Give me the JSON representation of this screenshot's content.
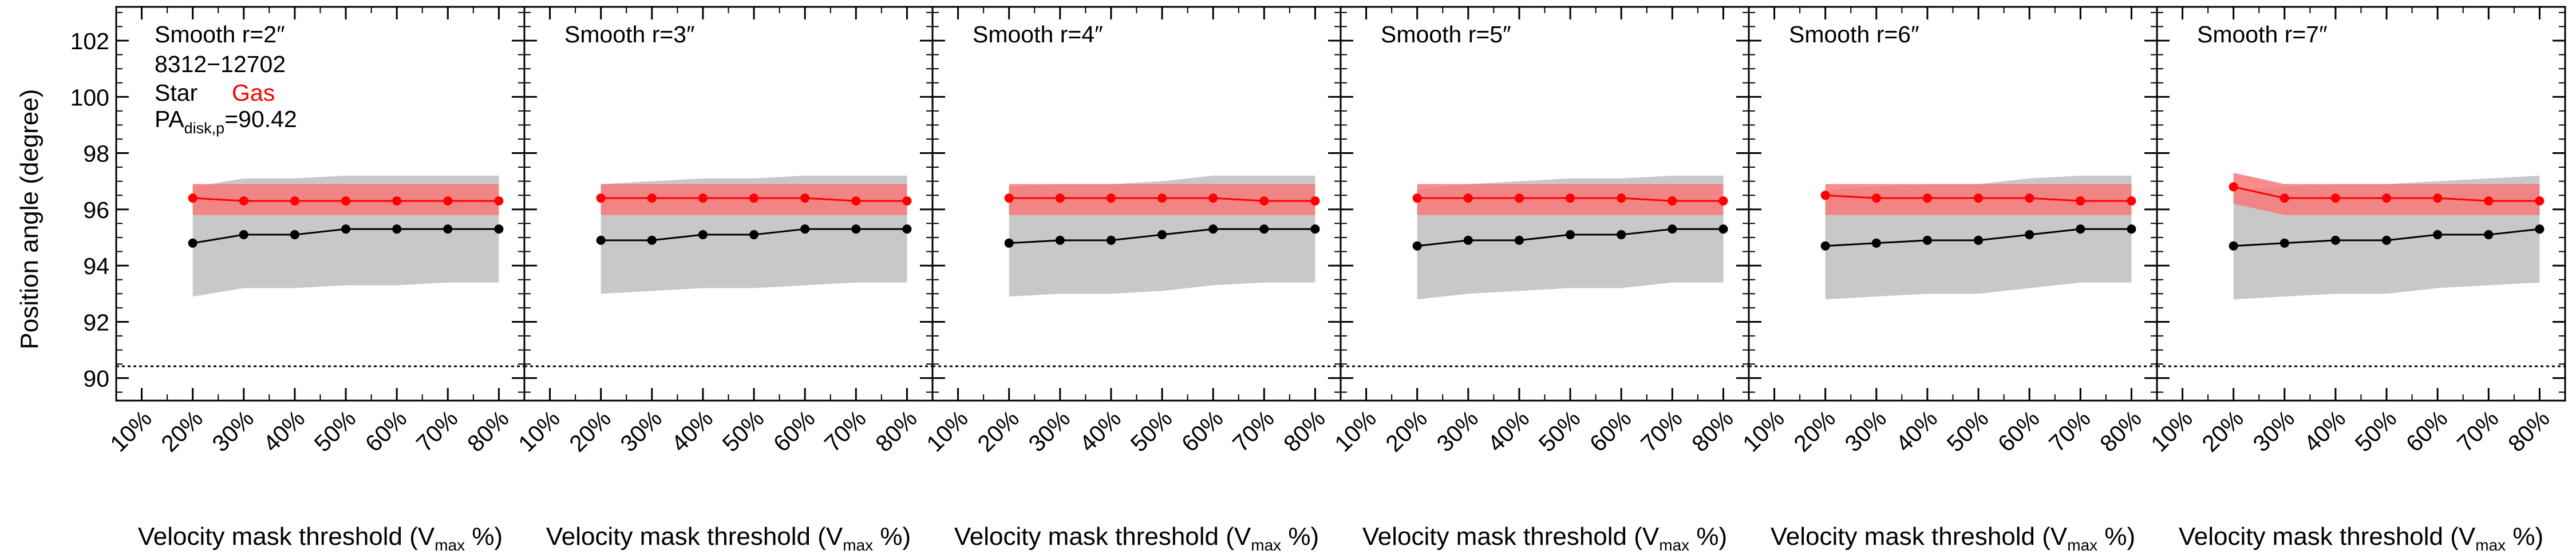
{
  "figure": {
    "ylabel": "Position angle (degree)",
    "galaxy_id": "8312−12702",
    "legend_star": "Star",
    "legend_gas": "Gas",
    "pa_label_main": "PA",
    "pa_label_sub": "disk,p",
    "pa_label_value": "=90.42",
    "xlabel_pre": "Velocity mask threshold (V",
    "xlabel_sub": "max",
    "xlabel_post": " %)",
    "colors": {
      "star": "#000000",
      "gas": "#ff0000",
      "gas_band": "#f87878",
      "star_band": "#c8c8c8",
      "gas_label": "#ff0000"
    }
  },
  "chart_data": [
    {
      "type": "line",
      "title": "Smooth r=2″",
      "x_ticks": [
        "10%",
        "20%",
        "30%",
        "40%",
        "50%",
        "60%",
        "70%",
        "80%"
      ],
      "x": [
        20,
        30,
        40,
        50,
        60,
        70,
        80
      ],
      "xlim": [
        5,
        85
      ],
      "ylim": [
        89.2,
        103.2
      ],
      "y_ticks": [
        90,
        92,
        94,
        96,
        98,
        100,
        102
      ],
      "reference_line": 90.42,
      "series": [
        {
          "name": "Star",
          "values": [
            94.8,
            95.1,
            95.1,
            95.3,
            95.3,
            95.3,
            95.3
          ],
          "band_low": [
            92.9,
            93.2,
            93.2,
            93.3,
            93.3,
            93.4,
            93.4
          ],
          "band_high": [
            96.8,
            97.1,
            97.1,
            97.2,
            97.2,
            97.2,
            97.2
          ]
        },
        {
          "name": "Gas",
          "values": [
            96.4,
            96.3,
            96.3,
            96.3,
            96.3,
            96.3,
            96.3
          ],
          "band_low": [
            95.8,
            95.8,
            95.8,
            95.8,
            95.8,
            95.8,
            95.8
          ],
          "band_high": [
            96.9,
            96.9,
            96.9,
            96.9,
            96.9,
            96.9,
            96.9
          ]
        }
      ]
    },
    {
      "type": "line",
      "title": "Smooth r=3″",
      "x_ticks": [
        "10%",
        "20%",
        "30%",
        "40%",
        "50%",
        "60%",
        "70%",
        "80%"
      ],
      "x": [
        20,
        30,
        40,
        50,
        60,
        70,
        80
      ],
      "xlim": [
        5,
        85
      ],
      "ylim": [
        89.2,
        103.2
      ],
      "y_ticks": [
        90,
        92,
        94,
        96,
        98,
        100,
        102
      ],
      "reference_line": 90.42,
      "series": [
        {
          "name": "Star",
          "values": [
            94.9,
            94.9,
            95.1,
            95.1,
            95.3,
            95.3,
            95.3
          ],
          "band_low": [
            93.0,
            93.1,
            93.2,
            93.2,
            93.3,
            93.4,
            93.4
          ],
          "band_high": [
            96.9,
            97.0,
            97.1,
            97.1,
            97.2,
            97.2,
            97.2
          ]
        },
        {
          "name": "Gas",
          "values": [
            96.4,
            96.4,
            96.4,
            96.4,
            96.4,
            96.3,
            96.3
          ],
          "band_low": [
            95.8,
            95.8,
            95.8,
            95.8,
            95.8,
            95.8,
            95.8
          ],
          "band_high": [
            96.9,
            96.9,
            96.9,
            96.9,
            96.9,
            96.9,
            96.9
          ]
        }
      ]
    },
    {
      "type": "line",
      "title": "Smooth r=4″",
      "x_ticks": [
        "10%",
        "20%",
        "30%",
        "40%",
        "50%",
        "60%",
        "70%",
        "80%"
      ],
      "x": [
        20,
        30,
        40,
        50,
        60,
        70,
        80
      ],
      "xlim": [
        5,
        85
      ],
      "ylim": [
        89.2,
        103.2
      ],
      "y_ticks": [
        90,
        92,
        94,
        96,
        98,
        100,
        102
      ],
      "reference_line": 90.42,
      "series": [
        {
          "name": "Star",
          "values": [
            94.8,
            94.9,
            94.9,
            95.1,
            95.3,
            95.3,
            95.3
          ],
          "band_low": [
            92.9,
            93.0,
            93.0,
            93.1,
            93.3,
            93.4,
            93.4
          ],
          "band_high": [
            96.8,
            96.9,
            96.9,
            97.0,
            97.2,
            97.2,
            97.2
          ]
        },
        {
          "name": "Gas",
          "values": [
            96.4,
            96.4,
            96.4,
            96.4,
            96.4,
            96.3,
            96.3
          ],
          "band_low": [
            95.8,
            95.8,
            95.8,
            95.8,
            95.8,
            95.8,
            95.8
          ],
          "band_high": [
            96.9,
            96.9,
            96.9,
            96.9,
            96.9,
            96.9,
            96.9
          ]
        }
      ]
    },
    {
      "type": "line",
      "title": "Smooth r=5″",
      "x_ticks": [
        "10%",
        "20%",
        "30%",
        "40%",
        "50%",
        "60%",
        "70%",
        "80%"
      ],
      "x": [
        20,
        30,
        40,
        50,
        60,
        70,
        80
      ],
      "xlim": [
        5,
        85
      ],
      "ylim": [
        89.2,
        103.2
      ],
      "y_ticks": [
        90,
        92,
        94,
        96,
        98,
        100,
        102
      ],
      "reference_line": 90.42,
      "series": [
        {
          "name": "Star",
          "values": [
            94.7,
            94.9,
            94.9,
            95.1,
            95.1,
            95.3,
            95.3
          ],
          "band_low": [
            92.8,
            93.0,
            93.1,
            93.2,
            93.2,
            93.4,
            93.4
          ],
          "band_high": [
            96.7,
            96.9,
            97.0,
            97.1,
            97.1,
            97.2,
            97.2
          ]
        },
        {
          "name": "Gas",
          "values": [
            96.4,
            96.4,
            96.4,
            96.4,
            96.4,
            96.3,
            96.3
          ],
          "band_low": [
            95.8,
            95.8,
            95.8,
            95.8,
            95.8,
            95.8,
            95.8
          ],
          "band_high": [
            96.9,
            96.9,
            96.9,
            96.9,
            96.9,
            96.9,
            96.9
          ]
        }
      ]
    },
    {
      "type": "line",
      "title": "Smooth r=6″",
      "x_ticks": [
        "10%",
        "20%",
        "30%",
        "40%",
        "50%",
        "60%",
        "70%",
        "80%"
      ],
      "x": [
        20,
        30,
        40,
        50,
        60,
        70,
        80
      ],
      "xlim": [
        5,
        85
      ],
      "ylim": [
        89.2,
        103.2
      ],
      "y_ticks": [
        90,
        92,
        94,
        96,
        98,
        100,
        102
      ],
      "reference_line": 90.42,
      "series": [
        {
          "name": "Star",
          "values": [
            94.7,
            94.8,
            94.9,
            94.9,
            95.1,
            95.3,
            95.3
          ],
          "band_low": [
            92.8,
            92.9,
            93.0,
            93.0,
            93.2,
            93.4,
            93.4
          ],
          "band_high": [
            96.7,
            96.8,
            96.9,
            96.9,
            97.1,
            97.2,
            97.2
          ]
        },
        {
          "name": "Gas",
          "values": [
            96.5,
            96.4,
            96.4,
            96.4,
            96.4,
            96.3,
            96.3
          ],
          "band_low": [
            95.8,
            95.8,
            95.8,
            95.8,
            95.8,
            95.8,
            95.8
          ],
          "band_high": [
            96.9,
            96.9,
            96.9,
            96.9,
            96.9,
            96.9,
            96.9
          ]
        }
      ]
    },
    {
      "type": "line",
      "title": "Smooth r=7″",
      "x_ticks": [
        "10%",
        "20%",
        "30%",
        "40%",
        "50%",
        "60%",
        "70%",
        "80%"
      ],
      "x": [
        20,
        30,
        40,
        50,
        60,
        70,
        80
      ],
      "xlim": [
        5,
        85
      ],
      "ylim": [
        89.2,
        103.2
      ],
      "y_ticks": [
        90,
        92,
        94,
        96,
        98,
        100,
        102
      ],
      "reference_line": 90.42,
      "series": [
        {
          "name": "Star",
          "values": [
            94.7,
            94.8,
            94.9,
            94.9,
            95.1,
            95.1,
            95.3
          ],
          "band_low": [
            92.8,
            92.9,
            93.0,
            93.0,
            93.2,
            93.3,
            93.4
          ],
          "band_high": [
            96.7,
            96.8,
            96.9,
            96.9,
            97.0,
            97.1,
            97.2
          ]
        },
        {
          "name": "Gas",
          "values": [
            96.8,
            96.4,
            96.4,
            96.4,
            96.4,
            96.3,
            96.3
          ],
          "band_low": [
            96.2,
            95.8,
            95.8,
            95.8,
            95.8,
            95.8,
            95.8
          ],
          "band_high": [
            97.3,
            96.9,
            96.9,
            96.9,
            96.9,
            96.9,
            96.9
          ]
        }
      ]
    }
  ]
}
